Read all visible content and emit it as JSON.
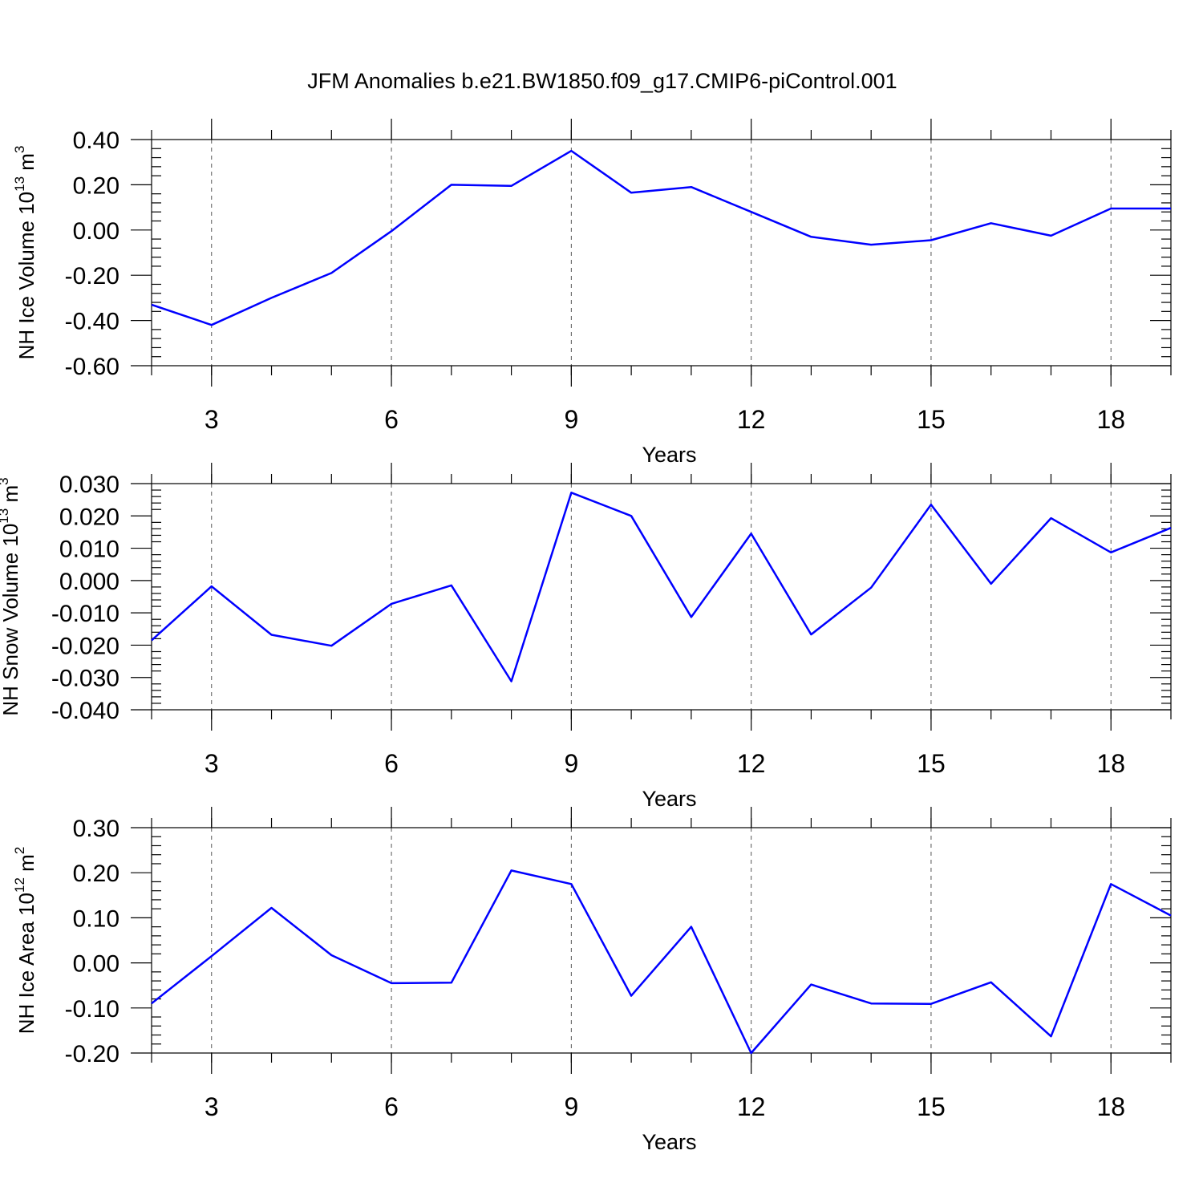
{
  "chart_data": {
    "title": "JFM Anomalies b.e21.BW1850.f09_g17.CMIP6-piControl.001",
    "line_color": "#0000ff",
    "panels": [
      {
        "type": "line",
        "ylabel_main": "NH Ice Volume 10",
        "ylabel_exp": "13",
        "ylabel_unit": " m",
        "ylabel_unit_exp": "3",
        "xlabel": "Years",
        "x": [
          2,
          3,
          4,
          5,
          6,
          7,
          8,
          9,
          10,
          11,
          12,
          13,
          14,
          15,
          16,
          17,
          18,
          19
        ],
        "values": [
          -0.33,
          -0.42,
          -0.3,
          -0.19,
          -0.005,
          0.2,
          0.195,
          0.35,
          0.165,
          0.19,
          0.08,
          -0.03,
          -0.065,
          -0.045,
          0.03,
          -0.025,
          0.095,
          0.095
        ],
        "xlim": [
          2,
          19
        ],
        "ylim": [
          -0.6,
          0.4
        ],
        "yticks": [
          -0.6,
          -0.4,
          -0.2,
          0.0,
          0.2,
          0.4
        ],
        "ytick_labels": [
          "-0.60",
          "-0.40",
          "-0.20",
          "0.00",
          "0.20",
          "0.40"
        ],
        "xticks": [
          3,
          6,
          9,
          12,
          15,
          18
        ],
        "xtick_labels": [
          "3",
          "6",
          "9",
          "12",
          "15",
          "18"
        ],
        "grid": "vertical dashed"
      },
      {
        "type": "line",
        "ylabel_main": "NH Snow Volume 10",
        "ylabel_exp": "13",
        "ylabel_unit": " m",
        "ylabel_unit_exp": "3",
        "xlabel": "Years",
        "x": [
          2,
          3,
          4,
          5,
          6,
          7,
          8,
          9,
          10,
          11,
          12,
          13,
          14,
          15,
          16,
          17,
          18,
          19
        ],
        "values": [
          -0.0185,
          -0.0018,
          -0.0168,
          -0.0202,
          -0.0072,
          -0.0015,
          -0.0312,
          0.0272,
          0.02,
          -0.0113,
          0.0145,
          -0.0167,
          -0.0022,
          0.0235,
          -0.001,
          0.0193,
          0.0087,
          0.0163
        ],
        "xlim": [
          2,
          19
        ],
        "ylim": [
          -0.04,
          0.03
        ],
        "yticks": [
          -0.04,
          -0.03,
          -0.02,
          -0.01,
          0.0,
          0.01,
          0.02,
          0.03
        ],
        "ytick_labels": [
          "-0.040",
          "-0.030",
          "-0.020",
          "-0.010",
          "0.000",
          "0.010",
          "0.020",
          "0.030"
        ],
        "xticks": [
          3,
          6,
          9,
          12,
          15,
          18
        ],
        "xtick_labels": [
          "3",
          "6",
          "9",
          "12",
          "15",
          "18"
        ],
        "grid": "vertical dashed"
      },
      {
        "type": "line",
        "ylabel_main": "NH Ice Area 10",
        "ylabel_exp": "12",
        "ylabel_unit": " m",
        "ylabel_unit_exp": "2",
        "xlabel": "Years",
        "x": [
          2,
          3,
          4,
          5,
          6,
          7,
          8,
          9,
          10,
          11,
          12,
          13,
          14,
          15,
          16,
          17,
          18,
          19
        ],
        "values": [
          -0.09,
          0.015,
          0.122,
          0.017,
          -0.045,
          -0.044,
          0.205,
          0.175,
          -0.073,
          0.08,
          -0.2,
          -0.048,
          -0.09,
          -0.091,
          -0.043,
          -0.163,
          0.175,
          0.105
        ],
        "xlim": [
          2,
          19
        ],
        "ylim": [
          -0.2,
          0.3
        ],
        "yticks": [
          -0.2,
          -0.1,
          0.0,
          0.1,
          0.2,
          0.3
        ],
        "ytick_labels": [
          "-0.20",
          "-0.10",
          "0.00",
          "0.10",
          "0.20",
          "0.30"
        ],
        "xticks": [
          3,
          6,
          9,
          12,
          15,
          18
        ],
        "xtick_labels": [
          "3",
          "6",
          "9",
          "12",
          "15",
          "18"
        ],
        "grid": "vertical dashed"
      }
    ]
  }
}
